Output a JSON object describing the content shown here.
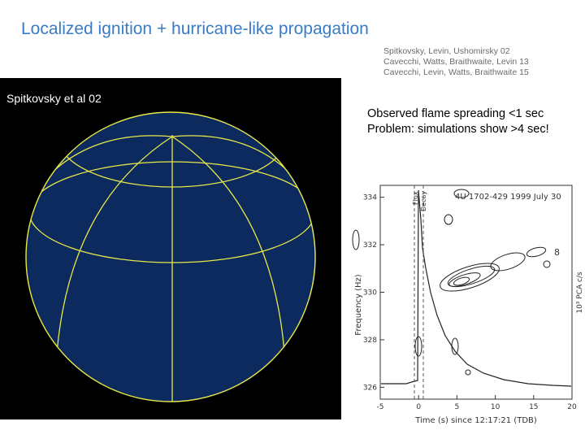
{
  "slide": {
    "title": "Localized ignition + hurricane-like propagation",
    "references": [
      "Spitkovsky, Levin, Ushomirsky 02",
      "Cavecchi, Watts, Braithwaite, Levin 13",
      "Cavecchi, Levin, Watts, Braithwaite 15"
    ],
    "globe_label": "Spitkovsky et al 02",
    "observations": [
      "Observed flame spreading <1 sec",
      "Problem: simulations show >4 sec!"
    ]
  },
  "plot": {
    "source_label": "4U 1702-429 1999 July 30",
    "xlabel": "Time (s) since 12:17:21 (TDB)",
    "ylabel": "Frequency (Hz)",
    "right_label": "10³ PCA c/s",
    "flux_label": "Flux",
    "decay_label": "Decay",
    "x_ticks": [
      "-5",
      "0",
      "5",
      "10",
      "15",
      "20"
    ],
    "y_ticks": [
      "334",
      "332",
      "330",
      "328",
      "326"
    ],
    "right_tick": "8",
    "xlim": [
      -5,
      20
    ],
    "ylim": [
      325.5,
      334.5
    ]
  },
  "colors": {
    "title": "#3a7cc4",
    "globe_fill": "#0c2a5e",
    "globe_lines": "#e8e84a",
    "panel_bg": "#000000"
  }
}
